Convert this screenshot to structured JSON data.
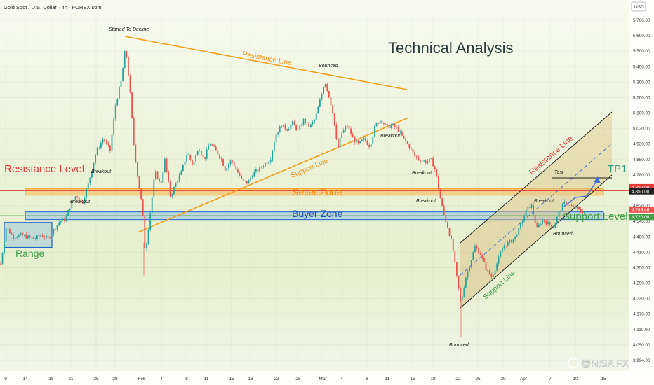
{
  "header": {
    "symbol": "Gold Spot / U.S. Dollar · 4h · FOREX.com",
    "currency": "USD"
  },
  "title": "Technical Analysis",
  "watermark": "@NISA FX",
  "colors": {
    "up": "#26a69a",
    "down": "#ef5350",
    "resistance": "#e53935",
    "support": "#43a047",
    "orange": "#f59d1c",
    "blue": "#1e63c8",
    "channel": "#1f1f1f"
  },
  "chart_data": {
    "type": "candlestick",
    "ylim": [
      3950,
      5760
    ],
    "y_ticks": [
      "5,700.00",
      "5,600.00",
      "5,500.00",
      "5,400.00",
      "5,300.00",
      "5,200.00",
      "5,100.00",
      "5,020.00",
      "4,930.00",
      "4,850.00",
      "4,780.00",
      "4,700.00",
      "4,620.00",
      "4,545.00",
      "4,480.00",
      "4,410.00",
      "4,350.00",
      "4,290.00",
      "4,230.00",
      "4,170.00",
      "4,110.00",
      "4,050.00",
      "3,994.00"
    ],
    "x_ticks": [
      "9",
      "14",
      "18",
      "21",
      "25",
      "28",
      "Feb",
      "4",
      "8",
      "11",
      "15",
      "18",
      "22",
      "25",
      "Mar",
      "4",
      "8",
      "11",
      "15",
      "18",
      "22",
      "25",
      "29",
      "Apr",
      "7",
      "10",
      "15"
    ],
    "price_labels": {
      "resistance": "4,850.00",
      "resistance2": "4,850.00",
      "current": "4,749.46",
      "support": "4,720.00"
    },
    "annotations": {
      "started_to_decline": "Started To Decline",
      "resistance_line": "Resistance Line",
      "bounced_top": "Bounced",
      "support_line": "Support Line",
      "breakout_1": "Breakout",
      "breakout_2": "Breakout",
      "breakout_3": "Breakout",
      "breakout_4": "Breakout",
      "breakout_5": "Breakout",
      "breakout_6": "Breakout",
      "resistance_level": "Resistance Level",
      "seller_zone": "Seller Zone",
      "buyer_zone": "Buyer Zone",
      "range": "Range",
      "tp1": "TP1",
      "channel_resistance": "Resistance Line",
      "channel_support": "Support Line",
      "support_level": "Support Level",
      "test": "Test",
      "bounced_channel": "Bounced",
      "bounced_bottom": "Bounced"
    },
    "anchors": [
      [
        0,
        4470
      ],
      [
        8,
        4660
      ],
      [
        18,
        4610
      ],
      [
        28,
        4620
      ],
      [
        38,
        4610
      ],
      [
        48,
        4600
      ],
      [
        58,
        4620
      ],
      [
        68,
        4600
      ],
      [
        76,
        4650
      ],
      [
        84,
        4690
      ],
      [
        92,
        4700
      ],
      [
        100,
        4780
      ],
      [
        108,
        4830
      ],
      [
        116,
        4780
      ],
      [
        126,
        4900
      ],
      [
        136,
        5050
      ],
      [
        146,
        5120
      ],
      [
        156,
        5060
      ],
      [
        164,
        5300
      ],
      [
        172,
        5420
      ],
      [
        178,
        5600
      ],
      [
        184,
        5380
      ],
      [
        190,
        5080
      ],
      [
        196,
        4900
      ],
      [
        202,
        4760
      ],
      [
        206,
        4520
      ],
      [
        212,
        4700
      ],
      [
        220,
        4950
      ],
      [
        228,
        4880
      ],
      [
        234,
        5010
      ],
      [
        242,
        4820
      ],
      [
        250,
        4890
      ],
      [
        258,
        4950
      ],
      [
        266,
        5050
      ],
      [
        274,
        4980
      ],
      [
        282,
        5080
      ],
      [
        290,
        5010
      ],
      [
        298,
        5100
      ],
      [
        306,
        5060
      ],
      [
        314,
        5020
      ],
      [
        320,
        4960
      ],
      [
        328,
        5010
      ],
      [
        336,
        4960
      ],
      [
        344,
        4900
      ],
      [
        352,
        4890
      ],
      [
        360,
        4940
      ],
      [
        368,
        4960
      ],
      [
        376,
        4990
      ],
      [
        384,
        5010
      ],
      [
        392,
        5140
      ],
      [
        400,
        5190
      ],
      [
        408,
        5170
      ],
      [
        416,
        5200
      ],
      [
        424,
        5160
      ],
      [
        432,
        5220
      ],
      [
        440,
        5180
      ],
      [
        448,
        5220
      ],
      [
        456,
        5330
      ],
      [
        462,
        5420
      ],
      [
        468,
        5340
      ],
      [
        474,
        5250
      ],
      [
        480,
        5060
      ],
      [
        486,
        5150
      ],
      [
        494,
        5190
      ],
      [
        502,
        5120
      ],
      [
        510,
        5090
      ],
      [
        518,
        5120
      ],
      [
        526,
        5080
      ],
      [
        534,
        5190
      ],
      [
        542,
        5220
      ],
      [
        550,
        5180
      ],
      [
        558,
        5190
      ],
      [
        566,
        5170
      ],
      [
        574,
        5120
      ],
      [
        582,
        5080
      ],
      [
        590,
        5030
      ],
      [
        598,
        5010
      ],
      [
        606,
        5000
      ],
      [
        614,
        5010
      ],
      [
        620,
        4950
      ],
      [
        626,
        4820
      ],
      [
        632,
        4720
      ],
      [
        638,
        4650
      ],
      [
        644,
        4560
      ],
      [
        650,
        4400
      ],
      [
        656,
        4260
      ],
      [
        662,
        4390
      ],
      [
        668,
        4460
      ],
      [
        676,
        4560
      ],
      [
        684,
        4520
      ],
      [
        692,
        4440
      ],
      [
        700,
        4400
      ],
      [
        708,
        4480
      ],
      [
        716,
        4560
      ],
      [
        724,
        4580
      ],
      [
        732,
        4600
      ],
      [
        740,
        4660
      ],
      [
        748,
        4740
      ],
      [
        756,
        4780
      ],
      [
        764,
        4650
      ],
      [
        772,
        4700
      ],
      [
        780,
        4680
      ],
      [
        788,
        4660
      ],
      [
        796,
        4740
      ],
      [
        804,
        4790
      ],
      [
        812,
        4770
      ],
      [
        820,
        4760
      ],
      [
        828,
        4740
      ],
      [
        834,
        4750
      ]
    ],
    "levels": {
      "resistance_level": 4850,
      "support_level": 4720,
      "seller_zone": [
        4827,
        4860
      ],
      "buyer_zone": [
        4700,
        4740
      ],
      "range_box": [
        4555,
        4685
      ]
    }
  }
}
